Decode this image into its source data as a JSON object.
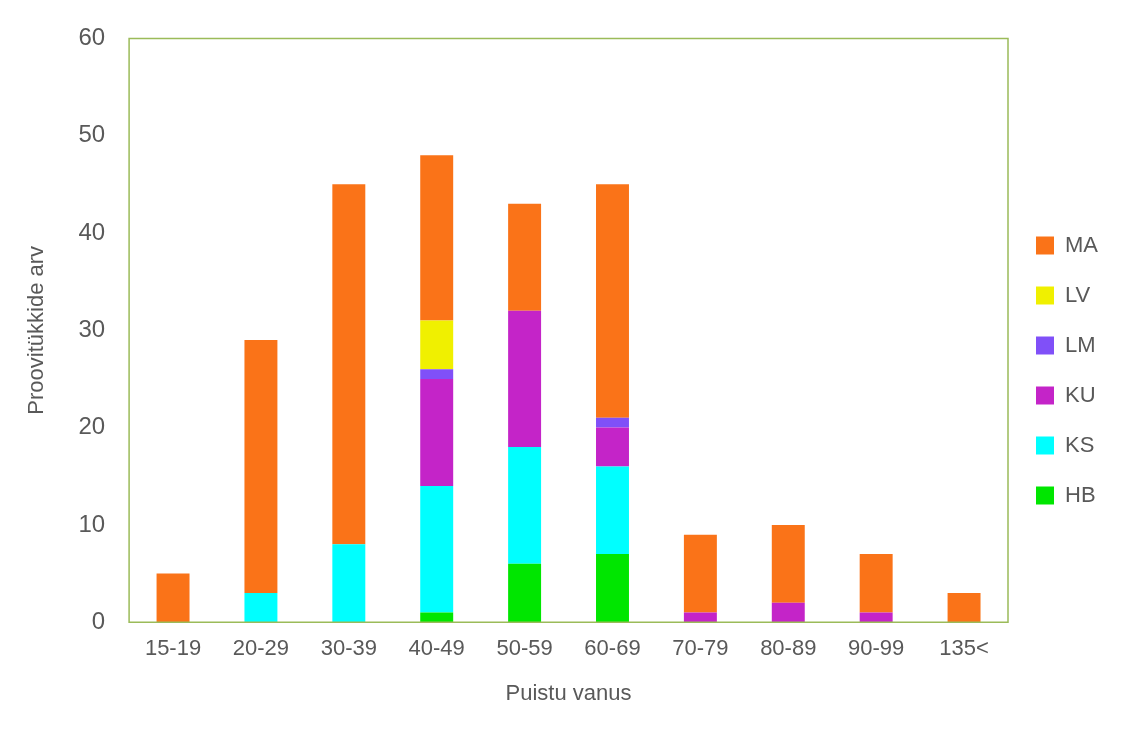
{
  "chart_data": {
    "type": "bar",
    "stacked": true,
    "xlabel": "Puistu vanus",
    "ylabel": "Proovitükkide arv",
    "categories": [
      "15-19",
      "20-29",
      "30-39",
      "40-49",
      "50-59",
      "60-69",
      "70-79",
      "80-89",
      "90-99",
      "135<"
    ],
    "ylim": [
      0,
      60
    ],
    "yticks": [
      0,
      10,
      20,
      30,
      40,
      50,
      60
    ],
    "grid": false,
    "legend": "right",
    "series": [
      {
        "name": "HB",
        "color": "#00e600",
        "values": [
          0,
          0,
          0,
          1,
          6,
          7,
          0,
          0,
          0,
          0
        ]
      },
      {
        "name": "KS",
        "color": "#00ffff",
        "values": [
          0,
          3,
          8,
          13,
          12,
          9,
          0,
          0,
          0,
          0
        ]
      },
      {
        "name": "KU",
        "color": "#c424c8",
        "values": [
          0,
          0,
          0,
          11,
          14,
          4,
          1,
          2,
          1,
          0
        ]
      },
      {
        "name": "LM",
        "color": "#8050f8",
        "values": [
          0,
          0,
          0,
          1,
          0,
          1,
          0,
          0,
          0,
          0
        ]
      },
      {
        "name": "LV",
        "color": "#f0f000",
        "values": [
          0,
          0,
          0,
          5,
          0,
          0,
          0,
          0,
          0,
          0
        ]
      },
      {
        "name": "MA",
        "color": "#fa7318",
        "values": [
          5,
          26,
          37,
          17,
          11,
          24,
          8,
          8,
          6,
          3
        ]
      }
    ]
  }
}
